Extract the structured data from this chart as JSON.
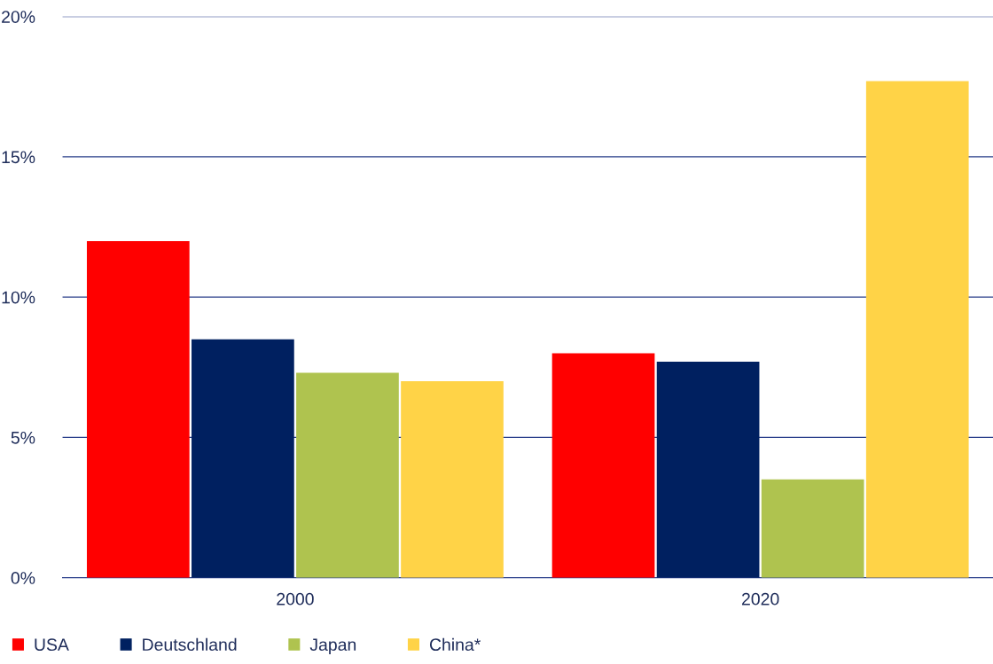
{
  "chart_data": {
    "type": "bar",
    "categories": [
      "2000",
      "2020"
    ],
    "series": [
      {
        "name": "USA",
        "color": "#ff0000",
        "values": [
          12.0,
          8.0
        ]
      },
      {
        "name": "Deutschland",
        "color": "#002060",
        "values": [
          8.5,
          7.7
        ]
      },
      {
        "name": "Japan",
        "color": "#afc34f",
        "values": [
          7.3,
          3.5
        ]
      },
      {
        "name": "China*",
        "color": "#ffd347",
        "values": [
          7.0,
          17.7
        ]
      }
    ],
    "ylim": [
      0,
      20
    ],
    "yticks": [
      {
        "value": 0,
        "label": "0%"
      },
      {
        "value": 5,
        "label": "5%"
      },
      {
        "value": 10,
        "label": "10%"
      },
      {
        "value": 15,
        "label": "15%"
      },
      {
        "value": 20,
        "label": "20%"
      }
    ],
    "grid": "y",
    "legend": "bottom left"
  }
}
